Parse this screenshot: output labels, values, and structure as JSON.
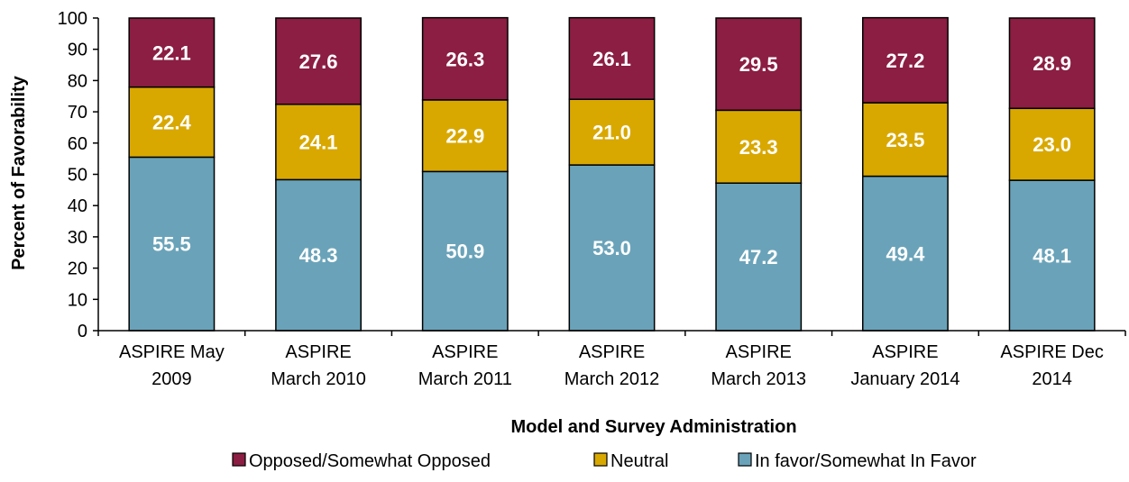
{
  "chart_data": {
    "type": "bar",
    "stacked": true,
    "categories": [
      [
        "ASPIRE May",
        "2009"
      ],
      [
        "ASPIRE",
        "March 2010"
      ],
      [
        "ASPIRE",
        "March 2011"
      ],
      [
        "ASPIRE",
        "March 2012"
      ],
      [
        "ASPIRE",
        "March 2013"
      ],
      [
        "ASPIRE",
        "January 2014"
      ],
      [
        "ASPIRE Dec",
        "2014"
      ]
    ],
    "series": [
      {
        "name": "In favor/Somewhat In Favor",
        "color": "#6aa3b9",
        "values": [
          55.5,
          48.3,
          50.9,
          53.0,
          47.2,
          49.4,
          48.1
        ],
        "labels": [
          "55.5",
          "48.3",
          "50.9",
          "53.0",
          "47.2",
          "49.4",
          "48.1"
        ]
      },
      {
        "name": "Neutral",
        "color": "#d9a800",
        "values": [
          22.4,
          24.1,
          22.9,
          21.0,
          23.3,
          23.5,
          23.0
        ],
        "labels": [
          "22.4",
          "24.1",
          "22.9",
          "21.0",
          "23.3",
          "23.5",
          "23.0"
        ]
      },
      {
        "name": "Opposed/Somewhat Opposed",
        "color": "#8b1e42",
        "values": [
          22.1,
          27.6,
          26.3,
          26.1,
          29.5,
          27.2,
          28.9
        ],
        "labels": [
          "22.1",
          "27.6",
          "26.3",
          "26.1",
          "29.5",
          "27.2",
          "28.9"
        ]
      }
    ],
    "legend_order": [
      2,
      1,
      0
    ],
    "legend_position": "bottom",
    "xlabel": "Model and Survey Administration",
    "ylabel": "Percent of Favorability",
    "ylim": [
      0,
      100
    ],
    "yticks": [
      "0",
      "10",
      "20",
      "30",
      "40",
      "50",
      "60",
      "70",
      "80",
      "90",
      "100"
    ],
    "grid": false
  }
}
